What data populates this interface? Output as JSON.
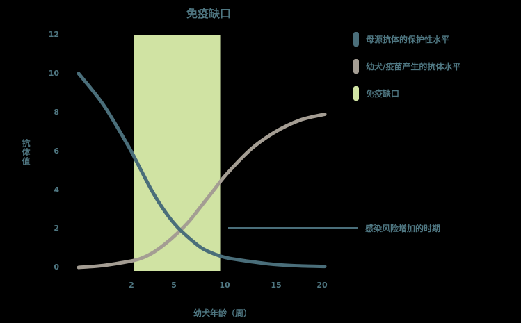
{
  "chart_data": {
    "type": "line",
    "title": "免疫缺口",
    "xlabel": "幼犬年龄（周）",
    "ylabel": "抗体值",
    "ylim": [
      0,
      12
    ],
    "yticks": [
      0,
      2,
      4,
      6,
      8,
      10,
      12
    ],
    "xticks": [
      2,
      5,
      10,
      15,
      20
    ],
    "grid": false,
    "legend_position": "right",
    "x": [
      0,
      2,
      4,
      5,
      6,
      7,
      8,
      9,
      10,
      11,
      12,
      14,
      16,
      18,
      20
    ],
    "series": [
      {
        "name": "母源抗体的保护性水平",
        "color": "#4a6e7a",
        "values": [
          10.0,
          8.4,
          6.3,
          5.1,
          3.9,
          2.9,
          2.1,
          1.5,
          1.0,
          0.7,
          0.5,
          0.3,
          0.15,
          0.08,
          0.05
        ]
      },
      {
        "name": "幼犬/疫苗产生的抗体水平",
        "color": "#a49d93",
        "values": [
          0.0,
          0.1,
          0.3,
          0.45,
          0.75,
          1.2,
          1.75,
          2.4,
          3.2,
          4.0,
          4.8,
          6.1,
          7.0,
          7.6,
          7.9
        ]
      }
    ],
    "shaded_region": {
      "name": "免疫缺口",
      "color": "#d0e3a3",
      "x_start": 4.5,
      "x_end": 11.5,
      "y_start": 0,
      "y_end": 12
    },
    "annotations": [
      {
        "text": "感染风险增加的时期",
        "points_to_x": 9,
        "points_to_y": 2.5
      }
    ]
  },
  "title": "免疫缺口",
  "axes": {
    "xlabel": "幼犬年龄（周）",
    "ylabel": "抗体值",
    "yticks": [
      "12",
      "10",
      "8",
      "6",
      "4",
      "2",
      "0"
    ],
    "xticks": [
      "2",
      "5",
      "10",
      "15",
      "20"
    ]
  },
  "legend": [
    {
      "label": "母源抗体的保护性水平",
      "color": "#4a6e7a"
    },
    {
      "label": "幼犬/疫苗产生的抗体水平",
      "color": "#a49d93"
    },
    {
      "label": "免疫缺口",
      "color": "#d0e3a3"
    }
  ],
  "annotation": {
    "text": "感染风险增加的时期"
  }
}
